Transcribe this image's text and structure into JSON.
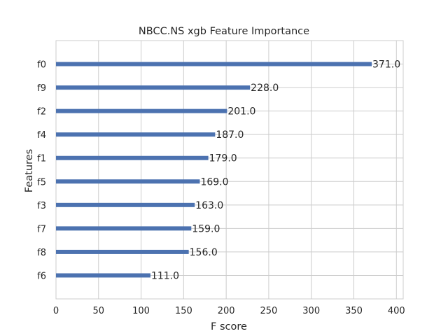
{
  "chart_data": {
    "type": "bar",
    "orientation": "horizontal",
    "title": "NBCC.NS xgb Feature Importance",
    "xlabel": "F score",
    "ylabel": "Features",
    "categories": [
      "f0",
      "f9",
      "f2",
      "f4",
      "f1",
      "f5",
      "f3",
      "f7",
      "f8",
      "f6"
    ],
    "values": [
      371.0,
      228.0,
      201.0,
      187.0,
      179.0,
      169.0,
      163.0,
      159.0,
      156.0,
      111.0
    ],
    "value_labels": [
      "371.0",
      "228.0",
      "201.0",
      "187.0",
      "179.0",
      "169.0",
      "163.0",
      "159.0",
      "156.0",
      "111.0"
    ],
    "xlim": [
      0,
      408
    ],
    "xticks": [
      0,
      50,
      100,
      150,
      200,
      250,
      300,
      350,
      400
    ],
    "grid": true,
    "bar_color": "#4c72b0"
  }
}
